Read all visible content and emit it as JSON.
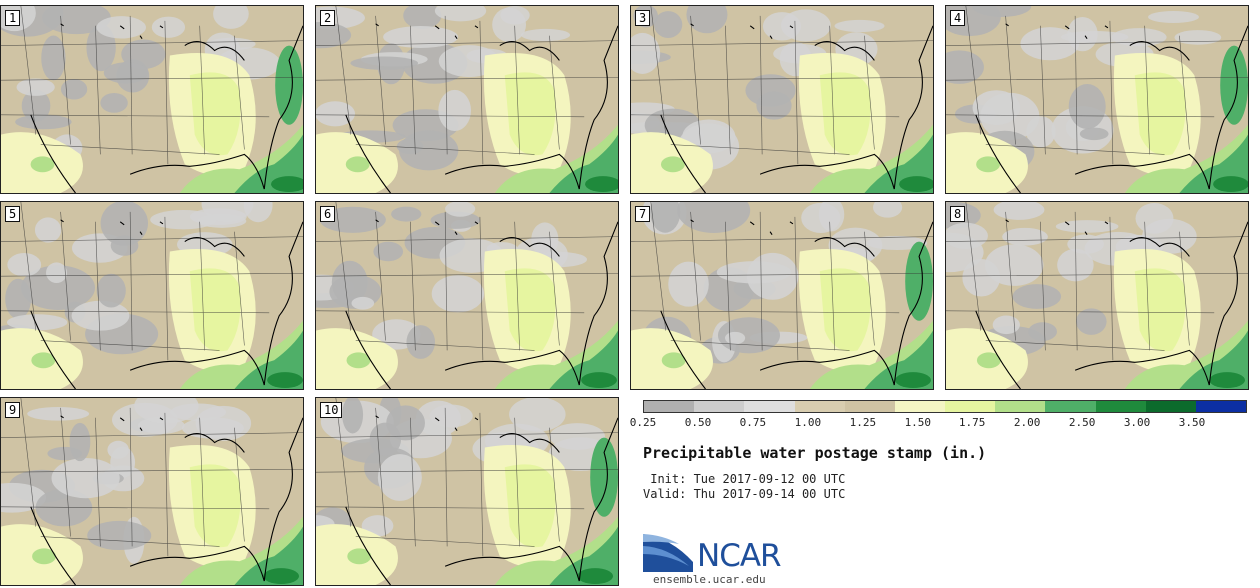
{
  "map": {
    "panels": [
      {
        "label": "1"
      },
      {
        "label": "2"
      },
      {
        "label": "3"
      },
      {
        "label": "4"
      },
      {
        "label": "5"
      },
      {
        "label": "6"
      },
      {
        "label": "7"
      },
      {
        "label": "8"
      },
      {
        "label": "9"
      },
      {
        "label": "10"
      }
    ],
    "region": "Continental United States",
    "colors": {
      "very_dry": "#b3b3b3",
      "dry": "#d3d3d3",
      "tan": "#cfc3a4",
      "light_yellow": "#f4f5bf",
      "yellow_green": "#e6f5a0",
      "light_green": "#b2df8a",
      "green": "#4faf68",
      "dark_green": "#1f8a3c",
      "darker_green": "#0c6b2c",
      "navy": "#0c2fa3",
      "boundary": "#333333",
      "coast": "#000000"
    }
  },
  "legend": {
    "title": "Precipitable water postage stamp (in.)",
    "ticks": [
      "0.25",
      "0.50",
      "0.75",
      "1.00",
      "1.25",
      "1.50",
      "1.75",
      "2.00",
      "2.50",
      "3.00",
      "3.50"
    ],
    "colors": [
      "#b0b0b0",
      "#cdcdcd",
      "#dedede",
      "#d8cdb0",
      "#cfc3a4",
      "#f4f5c4",
      "#e6f5a0",
      "#b2df8a",
      "#4faf68",
      "#1f8a3c",
      "#0c6b2c",
      "#0c2fa3"
    ]
  },
  "meta": {
    "init": " Init: Tue 2017-09-12 00 UTC",
    "valid": "Valid: Thu 2017-09-14 00 UTC"
  },
  "logo": {
    "text": "NCAR",
    "url": "ensemble.ucar.edu"
  }
}
